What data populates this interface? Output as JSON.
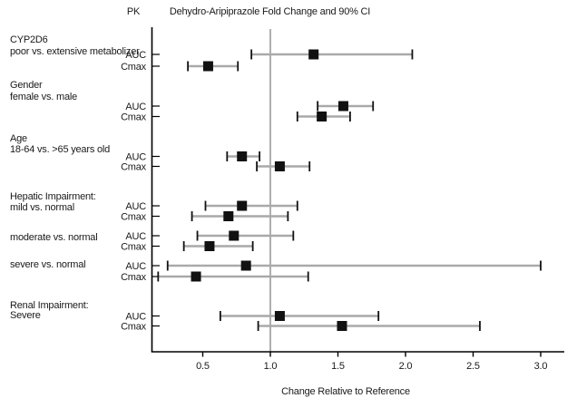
{
  "header": {
    "pk_label": "PK",
    "title": "Dehydro-Aripiprazole Fold Change and 90% CI"
  },
  "chart_data": {
    "type": "forest",
    "title": "Dehydro-Aripiprazole Fold Change and 90% CI",
    "xlabel": "Change Relative to Reference",
    "ci_level": "90% CI",
    "x_axis": {
      "min": 0.12,
      "max": 3.18,
      "ticks": [
        0.5,
        1.0,
        1.5,
        2.0,
        2.5,
        3.0
      ],
      "tick_labels": [
        "0.5",
        "1.0",
        "1.5",
        "2.0",
        "2.5",
        "3.0"
      ],
      "reference_line": 1.0
    },
    "groups": [
      {
        "label_lines": [
          "CYP2D6",
          "poor vs. extensive metabolizer"
        ],
        "rows": [
          {
            "param": "AUC",
            "estimate": 1.32,
            "ci_low": 0.86,
            "ci_high": 2.05
          },
          {
            "param": "Cmax",
            "estimate": 0.54,
            "ci_low": 0.39,
            "ci_high": 0.76
          }
        ]
      },
      {
        "label_lines": [
          "Gender",
          "female vs. male"
        ],
        "rows": [
          {
            "param": "AUC",
            "estimate": 1.54,
            "ci_low": 1.35,
            "ci_high": 1.76
          },
          {
            "param": "Cmax",
            "estimate": 1.38,
            "ci_low": 1.2,
            "ci_high": 1.59
          }
        ]
      },
      {
        "label_lines": [
          "Age",
          "18-64 vs. >65 years old"
        ],
        "rows": [
          {
            "param": "AUC",
            "estimate": 0.79,
            "ci_low": 0.68,
            "ci_high": 0.92
          },
          {
            "param": "Cmax",
            "estimate": 1.07,
            "ci_low": 0.9,
            "ci_high": 1.29
          }
        ]
      },
      {
        "label_lines": [
          "Hepatic Impairment:",
          "mild vs. normal"
        ],
        "rows": [
          {
            "param": "AUC",
            "estimate": 0.79,
            "ci_low": 0.52,
            "ci_high": 1.2
          },
          {
            "param": "Cmax",
            "estimate": 0.69,
            "ci_low": 0.42,
            "ci_high": 1.13
          }
        ]
      },
      {
        "label_lines": [
          "moderate vs. normal"
        ],
        "rows": [
          {
            "param": "AUC",
            "estimate": 0.73,
            "ci_low": 0.46,
            "ci_high": 1.17
          },
          {
            "param": "Cmax",
            "estimate": 0.55,
            "ci_low": 0.36,
            "ci_high": 0.87
          }
        ]
      },
      {
        "label_lines": [
          "severe vs. normal"
        ],
        "rows": [
          {
            "param": "AUC",
            "estimate": 0.82,
            "ci_low": 0.24,
            "ci_high": 3.0
          },
          {
            "param": "Cmax",
            "estimate": 0.45,
            "ci_low": 0.17,
            "ci_high": 1.28
          }
        ]
      },
      {
        "label_lines": [
          "Renal Impairment:",
          "Severe"
        ],
        "rows": [
          {
            "param": "AUC",
            "estimate": 1.07,
            "ci_low": 0.63,
            "ci_high": 1.8
          },
          {
            "param": "Cmax",
            "estimate": 1.53,
            "ci_low": 0.91,
            "ci_high": 2.55
          }
        ]
      }
    ],
    "colors": {
      "marker": "#111111",
      "ci_line": "#a9a9a9",
      "ci_cap": "#111111",
      "axis": "#000000",
      "reference_line": "#8c8c8c",
      "text": "#1a1a1a"
    }
  }
}
